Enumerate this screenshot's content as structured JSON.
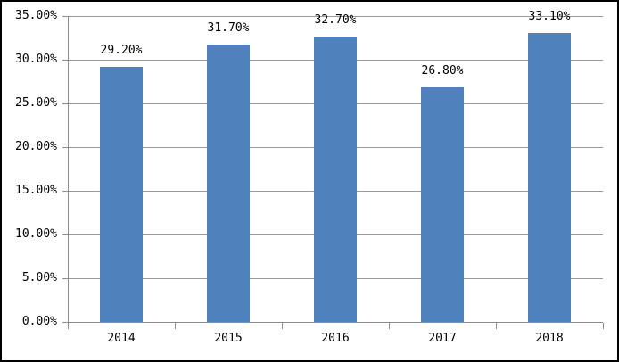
{
  "chart_data": {
    "type": "bar",
    "title": "",
    "xlabel": "",
    "ylabel": "",
    "categories": [
      "2014",
      "2015",
      "2016",
      "2017",
      "2018"
    ],
    "values": [
      29.2,
      31.7,
      32.7,
      26.8,
      33.1
    ],
    "value_labels": [
      "29.20%",
      "31.70%",
      "32.70%",
      "26.80%",
      "33.10%"
    ],
    "yticks": [
      0,
      5,
      10,
      15,
      20,
      25,
      30,
      35
    ],
    "ytick_labels": [
      "0.00%",
      "5.00%",
      "10.00%",
      "15.00%",
      "20.00%",
      "25.00%",
      "30.00%",
      "35.00%"
    ],
    "ylim": [
      0,
      35
    ],
    "grid": true,
    "legend": false,
    "colors": {
      "bar_fill": "#4F81BD",
      "gridline": "#9A9A9A",
      "axis": "#8C8C8C",
      "text": "#000000",
      "frame_border": "#000000",
      "background": "#FFFFFF"
    }
  }
}
